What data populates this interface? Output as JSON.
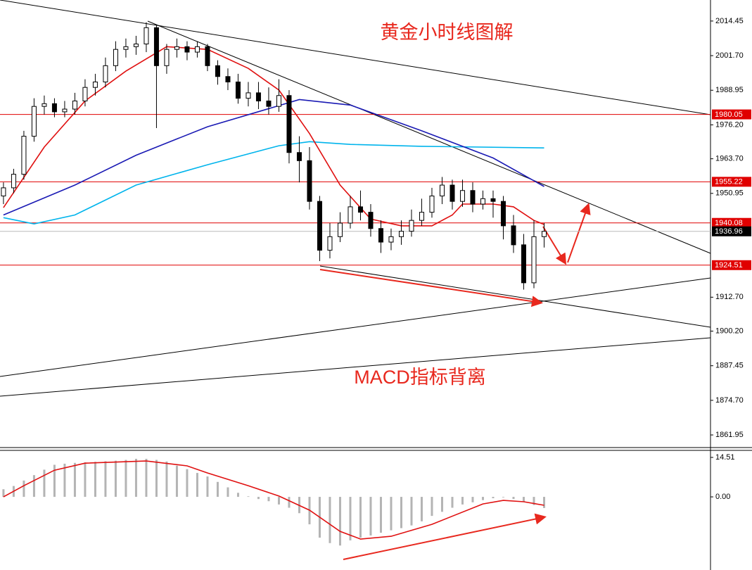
{
  "chart_data": [
    {
      "type": "candlestick",
      "title": "黄金小时线图解",
      "annotation": "MACD指标背离",
      "xlim": [
        -0.34,
        69.31
      ],
      "ylim": [
        1857.3,
        2022.2
      ],
      "yticks": [
        {
          "value": 2014.45,
          "label": "2014.45"
        },
        {
          "value": 2001.7,
          "label": "2001.70"
        },
        {
          "value": 1988.95,
          "label": "1988.95"
        },
        {
          "value": 1976.2,
          "label": "1976.20"
        },
        {
          "value": 1963.7,
          "label": "1963.70"
        },
        {
          "value": 1950.95,
          "label": "1950.95"
        },
        {
          "value": 1912.7,
          "label": "1912.70"
        },
        {
          "value": 1900.2,
          "label": "1900.20"
        },
        {
          "value": 1887.45,
          "label": "1887.45"
        },
        {
          "value": 1874.7,
          "label": "1874.70"
        },
        {
          "value": 1861.95,
          "label": "1861.95"
        }
      ],
      "up_color": "#ffffff",
      "down_color": "#000000",
      "candles": [
        [
          1950,
          1955,
          1947,
          1953
        ],
        [
          1953,
          1960,
          1951,
          1958
        ],
        [
          1958,
          1974,
          1956,
          1972
        ],
        [
          1972,
          1986,
          1970,
          1983
        ],
        [
          1983,
          1987,
          1980,
          1984
        ],
        [
          1984,
          1986,
          1979,
          1981
        ],
        [
          1981,
          1985,
          1979,
          1982
        ],
        [
          1982,
          1988,
          1980,
          1985
        ],
        [
          1985,
          1993,
          1983,
          1990
        ],
        [
          1990,
          1995,
          1987,
          1992
        ],
        [
          1992,
          2001,
          1990,
          1998
        ],
        [
          1998,
          2007,
          1996,
          2004
        ],
        [
          2004,
          2008,
          2001,
          2005
        ],
        [
          2005,
          2009,
          2002,
          2006
        ],
        [
          2006,
          2014,
          2003,
          2012
        ],
        [
          2012,
          2013,
          1975,
          1998
        ],
        [
          1998,
          2006,
          1995,
          2004
        ],
        [
          2004,
          2008,
          2001,
          2005
        ],
        [
          2005,
          2007,
          2000,
          2003
        ],
        [
          2003,
          2007,
          2001,
          2005
        ],
        [
          2005,
          2006,
          1996,
          1998
        ],
        [
          1998,
          2000,
          1991,
          1994
        ],
        [
          1994,
          1997,
          1989,
          1992
        ],
        [
          1992,
          1995,
          1984,
          1986
        ],
        [
          1986,
          1992,
          1983,
          1988
        ],
        [
          1988,
          1992,
          1982,
          1985
        ],
        [
          1985,
          1990,
          1980,
          1983
        ],
        [
          1983,
          1993,
          1981,
          1987
        ],
        [
          1987,
          1989,
          1962,
          1966
        ],
        [
          1966,
          1972,
          1955,
          1963
        ],
        [
          1963,
          1968,
          1945,
          1948
        ],
        [
          1948,
          1950,
          1926,
          1930
        ],
        [
          1930,
          1940,
          1927,
          1935
        ],
        [
          1935,
          1944,
          1933,
          1940
        ],
        [
          1940,
          1950,
          1938,
          1946
        ],
        [
          1946,
          1952,
          1941,
          1944
        ],
        [
          1944,
          1947,
          1935,
          1938
        ],
        [
          1938,
          1941,
          1929,
          1933
        ],
        [
          1933,
          1938,
          1930,
          1935
        ],
        [
          1935,
          1941,
          1932,
          1937
        ],
        [
          1937,
          1945,
          1935,
          1941
        ],
        [
          1941,
          1949,
          1939,
          1944
        ],
        [
          1944,
          1953,
          1942,
          1950
        ],
        [
          1950,
          1957,
          1947,
          1954
        ],
        [
          1954,
          1956,
          1945,
          1948
        ],
        [
          1948,
          1956,
          1946,
          1952
        ],
        [
          1952,
          1955,
          1944,
          1947
        ],
        [
          1947,
          1952,
          1945,
          1949
        ],
        [
          1949,
          1952,
          1942,
          1948
        ],
        [
          1948,
          1950,
          1934,
          1939
        ],
        [
          1939,
          1943,
          1929,
          1932
        ],
        [
          1932,
          1936,
          1915.5,
          1918
        ],
        [
          1918,
          1941,
          1916,
          1935
        ],
        [
          1935,
          1940,
          1931,
          1936.96
        ]
      ],
      "lines": [
        {
          "color": "#00b4ec",
          "x": [
            0,
            3,
            7,
            13,
            20,
            27,
            30,
            34,
            41,
            53
          ],
          "values": [
            1942,
            1939.7,
            1943,
            1954,
            1961.5,
            1968.5,
            1970,
            1969,
            1968.3,
            1967.7
          ]
        },
        {
          "color": "#1a1ab4",
          "x": [
            0,
            7,
            13,
            20,
            29,
            34,
            41,
            48,
            53
          ],
          "values": [
            1943,
            1954,
            1965,
            1975.5,
            1985.5,
            1983.5,
            1974,
            1964,
            1953.5
          ]
        },
        {
          "color": "#e01010",
          "x": [
            0,
            4,
            8,
            12,
            16,
            20,
            24,
            27,
            30,
            33,
            36,
            39,
            42,
            44,
            45,
            48,
            50,
            52,
            53
          ],
          "values": [
            1945.7,
            1968,
            1985,
            1996,
            2005,
            2004,
            1997,
            1989,
            1973,
            1954,
            1941.5,
            1939,
            1939,
            1943,
            1947,
            1947,
            1946,
            1941,
            1939.5
          ]
        }
      ],
      "levels": [
        {
          "value": 1980.05,
          "color": "#e00000"
        },
        {
          "value": 1955.22,
          "color": "#e00000"
        },
        {
          "value": 1940.08,
          "color": "#e00000"
        },
        {
          "value": 1924.51,
          "color": "#e00000"
        }
      ],
      "current": {
        "value": 1936.96,
        "color": "#000000"
      }
    },
    {
      "type": "macd",
      "xlim": [
        -0.34,
        69.31
      ],
      "ylim": [
        -26.9,
        17.1
      ],
      "yticks": [
        14.51,
        {
          "value": 0,
          "label": "0.00"
        }
      ],
      "color": "#b4b4b4",
      "values": [
        2.8,
        4,
        6,
        8,
        10,
        11.8,
        12.2,
        12.5,
        12.7,
        12.9,
        13.1,
        13.3,
        13.6,
        14,
        14,
        13.6,
        13,
        11.5,
        10.2,
        8.8,
        7.5,
        5.5,
        3.5,
        1.5,
        0.2,
        -0.8,
        -1.6,
        -2.8,
        -4,
        -6,
        -10.1,
        -15,
        -17,
        -17.9,
        -16,
        -15,
        -14.2,
        -13.2,
        -12.3,
        -11.5,
        -10.5,
        -9,
        -7,
        -5.5,
        -4,
        -2.8,
        -2,
        -1.2,
        -0.5,
        -0.2,
        -0.8,
        -1.8,
        -3,
        -4.1
      ],
      "signal": {
        "color": "#e01010",
        "x": [
          0,
          2,
          5,
          8,
          14,
          18,
          20,
          24,
          27,
          30,
          33,
          35,
          38,
          42,
          47,
          49,
          51,
          53
        ],
        "values": [
          0,
          4.1,
          9.8,
          12.4,
          13.2,
          11.4,
          8.8,
          4.1,
          0.3,
          -4.9,
          -12.7,
          -15.5,
          -14.5,
          -10.1,
          -2.6,
          -1.3,
          -1.8,
          -3.1
        ]
      }
    }
  ]
}
